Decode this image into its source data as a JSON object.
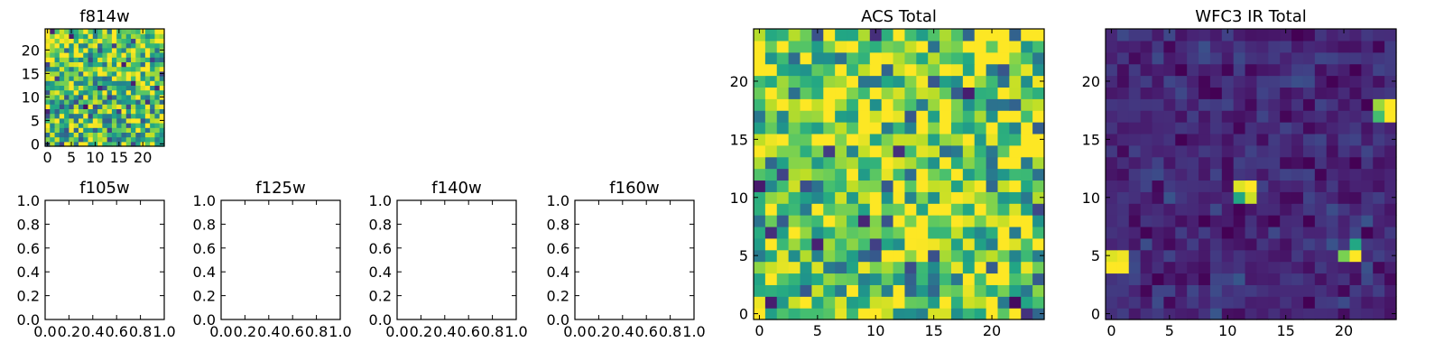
{
  "colormap": "viridis",
  "colors": {
    "axes_edge": "#000000",
    "background": "#ffffff"
  },
  "chart_data": [
    {
      "type": "heatmap",
      "title": "f814w",
      "xlabel": "",
      "ylabel": "",
      "grid_size": 25,
      "xlim": [
        -0.5,
        24.5
      ],
      "ylim": [
        -0.5,
        24.5
      ],
      "xticks": [
        0,
        5,
        10,
        15,
        20
      ],
      "yticks": [
        0,
        5,
        10,
        15,
        20
      ],
      "seed": 814,
      "bias": 0.15,
      "spots": []
    },
    {
      "type": "empty",
      "title": "f105w",
      "xlim": [
        0,
        1
      ],
      "ylim": [
        0,
        1
      ],
      "xticks": [
        "0.0",
        "0.2",
        "0.4",
        "0.6",
        "0.8",
        "1.0"
      ],
      "yticks": [
        "0.0",
        "0.2",
        "0.4",
        "0.6",
        "0.8",
        "1.0"
      ]
    },
    {
      "type": "empty",
      "title": "f125w",
      "xlim": [
        0,
        1
      ],
      "ylim": [
        0,
        1
      ],
      "xticks": [
        "0.0",
        "0.2",
        "0.4",
        "0.6",
        "0.8",
        "1.0"
      ],
      "yticks": [
        "0.0",
        "0.2",
        "0.4",
        "0.6",
        "0.8",
        "1.0"
      ]
    },
    {
      "type": "empty",
      "title": "f140w",
      "xlim": [
        0,
        1
      ],
      "ylim": [
        0,
        1
      ],
      "xticks": [
        "0.0",
        "0.2",
        "0.4",
        "0.6",
        "0.8",
        "1.0"
      ],
      "yticks": [
        "0.0",
        "0.2",
        "0.4",
        "0.6",
        "0.8",
        "1.0"
      ]
    },
    {
      "type": "empty",
      "title": "f160w",
      "xlim": [
        0,
        1
      ],
      "ylim": [
        0,
        1
      ],
      "xticks": [
        "0.0",
        "0.2",
        "0.4",
        "0.6",
        "0.8",
        "1.0"
      ],
      "yticks": [
        "0.0",
        "0.2",
        "0.4",
        "0.6",
        "0.8",
        "1.0"
      ]
    },
    {
      "type": "heatmap",
      "title": "ACS Total",
      "xlabel": "",
      "ylabel": "",
      "grid_size": 25,
      "xlim": [
        -0.5,
        24.5
      ],
      "ylim": [
        -0.5,
        24.5
      ],
      "xticks": [
        0,
        5,
        10,
        15,
        20
      ],
      "yticks": [
        0,
        5,
        10,
        15,
        20
      ],
      "seed": 777,
      "bias": 0.2,
      "spots": []
    },
    {
      "type": "heatmap",
      "title": "WFC3 IR Total",
      "xlabel": "",
      "ylabel": "",
      "grid_size": 25,
      "xlim": [
        -0.5,
        24.5
      ],
      "ylim": [
        -0.5,
        24.5
      ],
      "xticks": [
        0,
        5,
        10,
        15,
        20
      ],
      "yticks": [
        0,
        5,
        10,
        15,
        20
      ],
      "seed": 3,
      "bias": -0.55,
      "spots": [
        {
          "x": 0,
          "y": 4,
          "value": 1.0
        },
        {
          "x": 1,
          "y": 4,
          "value": 1.0
        },
        {
          "x": 0,
          "y": 5,
          "value": 0.95
        },
        {
          "x": 1,
          "y": 5,
          "value": 0.98
        },
        {
          "x": 11,
          "y": 11,
          "value": 0.95
        },
        {
          "x": 12,
          "y": 11,
          "value": 1.0
        },
        {
          "x": 11,
          "y": 10,
          "value": 0.6
        },
        {
          "x": 12,
          "y": 10,
          "value": 0.92
        },
        {
          "x": 20,
          "y": 5,
          "value": 0.8
        },
        {
          "x": 21,
          "y": 5,
          "value": 1.0
        },
        {
          "x": 21,
          "y": 6,
          "value": 0.6
        },
        {
          "x": 23,
          "y": 17,
          "value": 0.7
        },
        {
          "x": 24,
          "y": 17,
          "value": 1.0
        },
        {
          "x": 24,
          "y": 18,
          "value": 1.0
        },
        {
          "x": 23,
          "y": 18,
          "value": 0.85
        }
      ]
    }
  ]
}
